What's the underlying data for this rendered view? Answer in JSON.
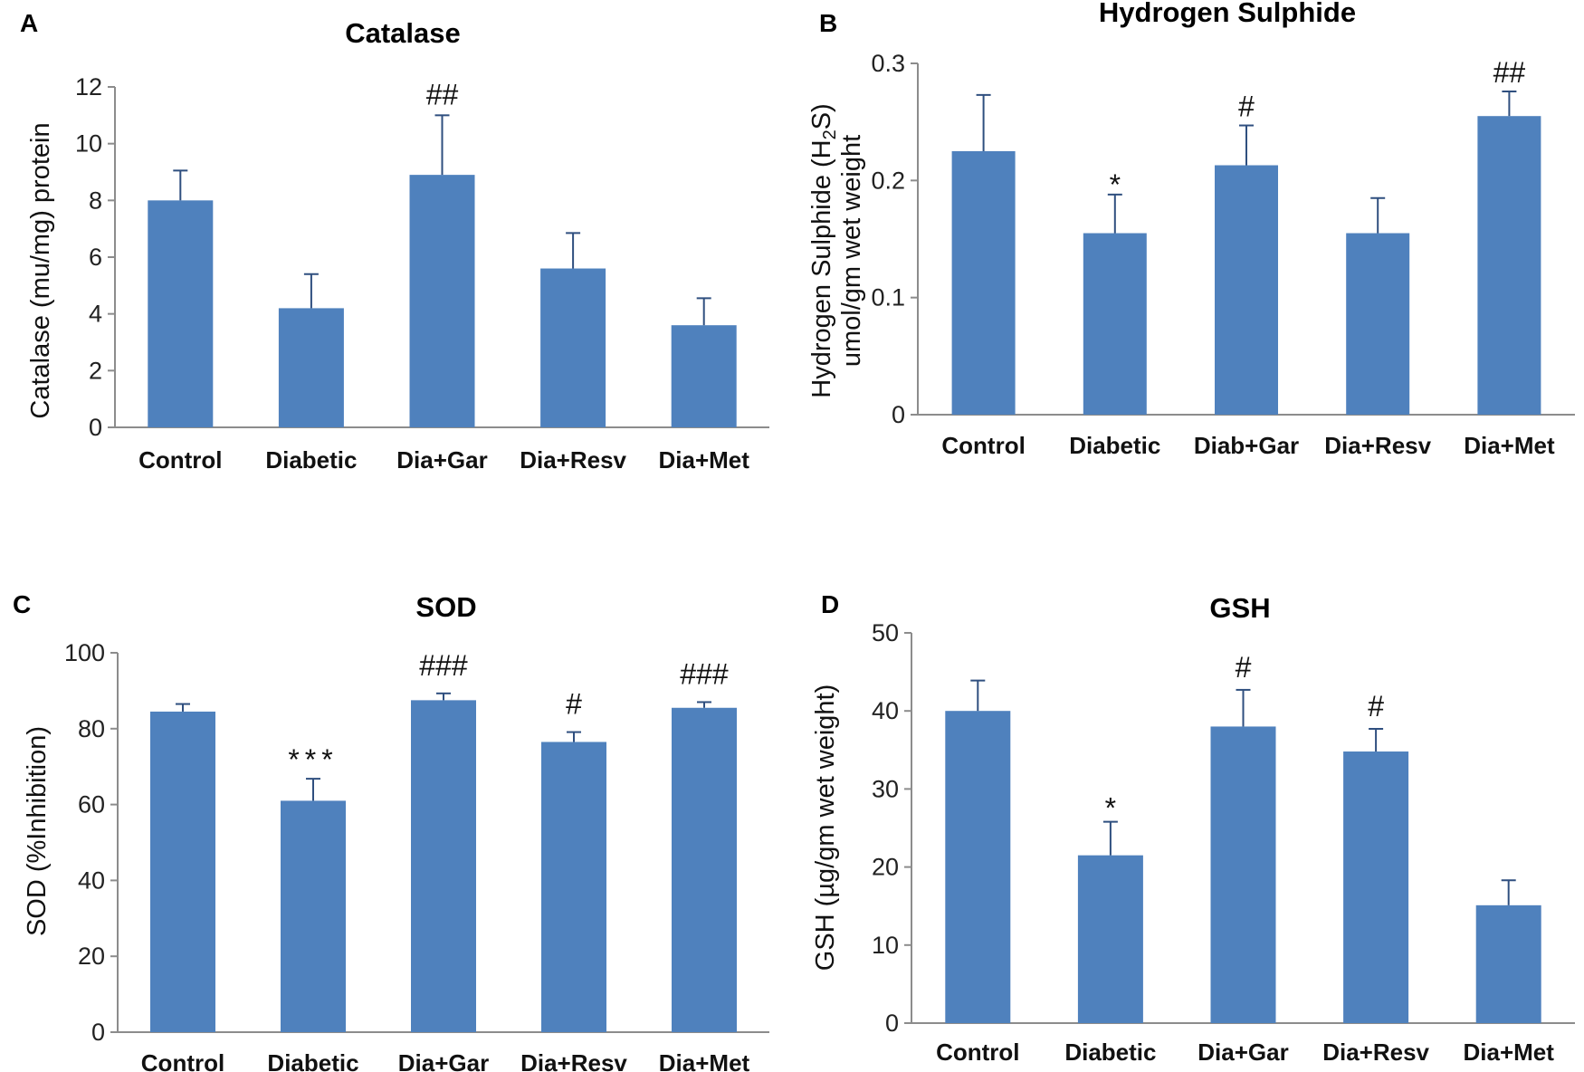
{
  "colors": {
    "bar": "#4f81bd",
    "axis": "#8c8c8c",
    "error": "#2f4f7f"
  },
  "chart_data": [
    {
      "panel": "A",
      "type": "bar",
      "title": "Catalase",
      "ylabel": "Catalase (mu/mg) protein",
      "categories": [
        "Control",
        "Diabetic",
        "Dia+Gar",
        "Dia+Resv",
        "Dia+Met"
      ],
      "values": [
        8.0,
        4.2,
        8.9,
        5.6,
        3.6
      ],
      "errors": [
        1.05,
        1.2,
        2.1,
        1.25,
        0.95
      ],
      "annotations": [
        "",
        "",
        "##",
        "",
        ""
      ],
      "ylim": [
        0,
        12
      ],
      "yticks": [
        0,
        2,
        4,
        6,
        8,
        10,
        12
      ],
      "ytick_labels": [
        "0",
        "2",
        "4",
        "6",
        "8",
        "10",
        "12"
      ]
    },
    {
      "panel": "B",
      "type": "bar",
      "title": "Hydrogen Sulphide",
      "ylabel_lines": [
        "Hydrogen Sulphide (H",
        "2",
        "S)",
        "umol/gm wet weight"
      ],
      "categories": [
        "Control",
        "Diabetic",
        "Diab+Gar",
        "Dia+Resv",
        "Dia+Met"
      ],
      "values": [
        0.225,
        0.155,
        0.213,
        0.155,
        0.255
      ],
      "errors": [
        0.048,
        0.033,
        0.034,
        0.03,
        0.021
      ],
      "annotations": [
        "",
        "*",
        "#",
        "",
        "##"
      ],
      "ylim": [
        0,
        0.3
      ],
      "yticks": [
        0,
        0.1,
        0.2,
        0.3
      ],
      "ytick_labels": [
        "0",
        "0.1",
        "0.2",
        "0.3"
      ]
    },
    {
      "panel": "C",
      "type": "bar",
      "title": "SOD",
      "ylabel": "SOD (%Inhibition)",
      "categories": [
        "Control",
        "Diabetic",
        "Dia+Gar",
        "Dia+Resv",
        "Dia+Met"
      ],
      "values": [
        84.5,
        61.0,
        87.5,
        76.5,
        85.5
      ],
      "errors": [
        2.0,
        5.8,
        1.8,
        2.6,
        1.5
      ],
      "annotations": [
        "",
        "***",
        "###",
        "#",
        "###"
      ],
      "ylim": [
        0,
        100
      ],
      "yticks": [
        0,
        20,
        40,
        60,
        80,
        100
      ],
      "ytick_labels": [
        "0",
        "20",
        "40",
        "60",
        "80",
        "100"
      ]
    },
    {
      "panel": "D",
      "type": "bar",
      "title": "GSH",
      "ylabel": "GSH (µg/gm wet weight)",
      "categories": [
        "Control",
        "Diabetic",
        "Dia+Gar",
        "Dia+Resv",
        "Dia+Met"
      ],
      "values": [
        40.0,
        21.5,
        38.0,
        34.8,
        15.1
      ],
      "errors": [
        3.9,
        4.3,
        4.7,
        2.9,
        3.2
      ],
      "annotations": [
        "",
        "*",
        "#",
        "#",
        ""
      ],
      "ylim": [
        0,
        50
      ],
      "yticks": [
        0,
        10,
        20,
        30,
        40,
        50
      ],
      "ytick_labels": [
        "0",
        "10",
        "20",
        "30",
        "40",
        "50"
      ]
    }
  ]
}
